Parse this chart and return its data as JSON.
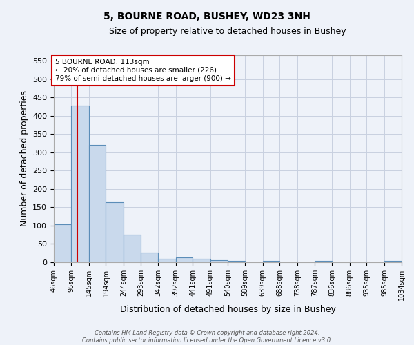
{
  "title1": "5, BOURNE ROAD, BUSHEY, WD23 3NH",
  "title2": "Size of property relative to detached houses in Bushey",
  "xlabel": "Distribution of detached houses by size in Bushey",
  "ylabel": "Number of detached properties",
  "bin_edges": [
    46,
    95,
    145,
    194,
    244,
    293,
    342,
    392,
    441,
    491,
    540,
    589,
    639,
    688,
    738,
    787,
    836,
    886,
    935,
    985,
    1034
  ],
  "bar_heights": [
    104,
    428,
    320,
    163,
    75,
    26,
    10,
    13,
    10,
    5,
    4,
    0,
    3,
    0,
    0,
    4,
    0,
    0,
    0,
    4
  ],
  "bar_color": "#c9d9ec",
  "bar_edge_color": "#5b8db8",
  "grid_color": "#c8d0e0",
  "background_color": "#eef2f9",
  "property_line_x": 113,
  "property_line_color": "#cc0000",
  "annotation_text": "5 BOURNE ROAD: 113sqm\n← 20% of detached houses are smaller (226)\n79% of semi-detached houses are larger (900) →",
  "annotation_box_color": "#ffffff",
  "annotation_box_edge_color": "#cc0000",
  "tick_labels": [
    "46sqm",
    "95sqm",
    "145sqm",
    "194sqm",
    "244sqm",
    "293sqm",
    "342sqm",
    "392sqm",
    "441sqm",
    "491sqm",
    "540sqm",
    "589sqm",
    "639sqm",
    "688sqm",
    "738sqm",
    "787sqm",
    "836sqm",
    "886sqm",
    "935sqm",
    "985sqm",
    "1034sqm"
  ],
  "yticks": [
    0,
    50,
    100,
    150,
    200,
    250,
    300,
    350,
    400,
    450,
    500,
    550
  ],
  "ylim": [
    0,
    565
  ],
  "xlim": [
    46,
    1034
  ],
  "footer_line1": "Contains HM Land Registry data © Crown copyright and database right 2024.",
  "footer_line2": "Contains public sector information licensed under the Open Government Licence v3.0."
}
